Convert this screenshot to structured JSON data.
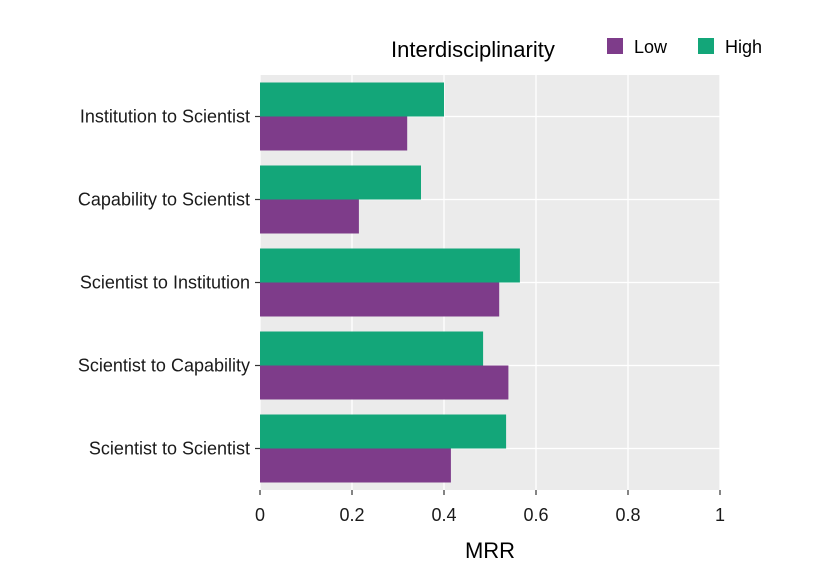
{
  "chart_data": {
    "type": "bar",
    "orientation": "horizontal",
    "categories": [
      "Institution to Scientist",
      "Capability to Scientist",
      "Scientist to Institution",
      "Scientist to Capability",
      "Scientist to Scientist"
    ],
    "series": [
      {
        "name": "High",
        "color": "#13A679",
        "values": [
          0.4,
          0.35,
          0.565,
          0.485,
          0.535
        ]
      },
      {
        "name": "Low",
        "color": "#7E3C8A",
        "values": [
          0.32,
          0.215,
          0.52,
          0.54,
          0.415
        ]
      }
    ],
    "xlabel": "MRR",
    "ylabel": "",
    "xlim": [
      0,
      1
    ],
    "xticks": [
      "0",
      "0.2",
      "0.4",
      "0.6",
      "0.8",
      "1"
    ],
    "xtick_values": [
      0,
      0.2,
      0.4,
      0.6,
      0.8,
      1
    ],
    "grid": true,
    "panel_background": "#EBEBEB",
    "legend": {
      "title": "Interdisciplinarity",
      "position": "top-right",
      "entries": [
        {
          "label": "Low",
          "color": "#7E3C8A"
        },
        {
          "label": "High",
          "color": "#13A679"
        }
      ]
    }
  }
}
